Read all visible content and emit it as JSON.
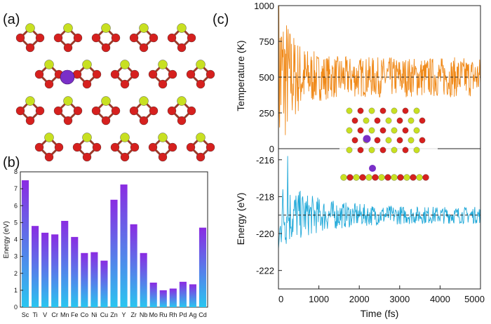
{
  "panels": {
    "a": {
      "label": "(a)"
    },
    "b": {
      "label": "(b)"
    },
    "c": {
      "label": "(c)"
    }
  },
  "colors": {
    "oxygen": "#d6201e",
    "sulfur": "#c8e021",
    "dopant": "#7a2fc8",
    "bar_top": "#8a2be2",
    "bar_bottom": "#29c6f0",
    "temperature_line": "#f08a1a",
    "energy_line": "#1fa8d8",
    "reference_line": "#222222"
  },
  "chart_data": [
    {
      "type": "bar",
      "panel": "b",
      "categories": [
        "Sc",
        "Ti",
        "V",
        "Cr",
        "Mn",
        "Fe",
        "Co",
        "Ni",
        "Cu",
        "Zn",
        "Y",
        "Zr",
        "Nb",
        "Mo",
        "Ru",
        "Rh",
        "Pd",
        "Ag",
        "Cd"
      ],
      "values": [
        7.5,
        4.8,
        4.4,
        4.3,
        5.1,
        4.15,
        3.2,
        3.25,
        2.75,
        6.35,
        7.25,
        4.9,
        3.2,
        1.45,
        1.0,
        1.1,
        1.5,
        1.35,
        4.7
      ],
      "ylabel": "Energy (eV)",
      "ylim": [
        0,
        8
      ],
      "yticks": [
        "0",
        "1",
        "2",
        "3",
        "4",
        "5",
        "6",
        "7",
        "8"
      ],
      "xlabel": "",
      "title": ""
    },
    {
      "type": "line",
      "panel": "c-top",
      "ylabel": "Temperature (K)",
      "ylim": [
        0,
        1000
      ],
      "yticks": [
        "0",
        "250",
        "500",
        "750",
        "1000"
      ],
      "xlim": [
        0,
        5000
      ],
      "reference_y": 500,
      "series": [
        {
          "mean": 500,
          "initial_amplitude": 650,
          "late_amplitude": 140
        }
      ]
    },
    {
      "type": "line",
      "panel": "c-bottom",
      "xlabel": "Time (fs)",
      "ylabel": "Energy (eV)",
      "ylim": [
        -223,
        -215.4
      ],
      "yticks": [
        "-216",
        "-218",
        "-220",
        "-222"
      ],
      "xlim": [
        0,
        5000
      ],
      "xticks": [
        "0",
        "1000",
        "2000",
        "3000",
        "4000",
        "5000"
      ],
      "reference_y": -219,
      "series": [
        {
          "mean": -219.0,
          "start": -220.9,
          "peak": -215.8,
          "late_amplitude": 0.45
        }
      ]
    }
  ]
}
